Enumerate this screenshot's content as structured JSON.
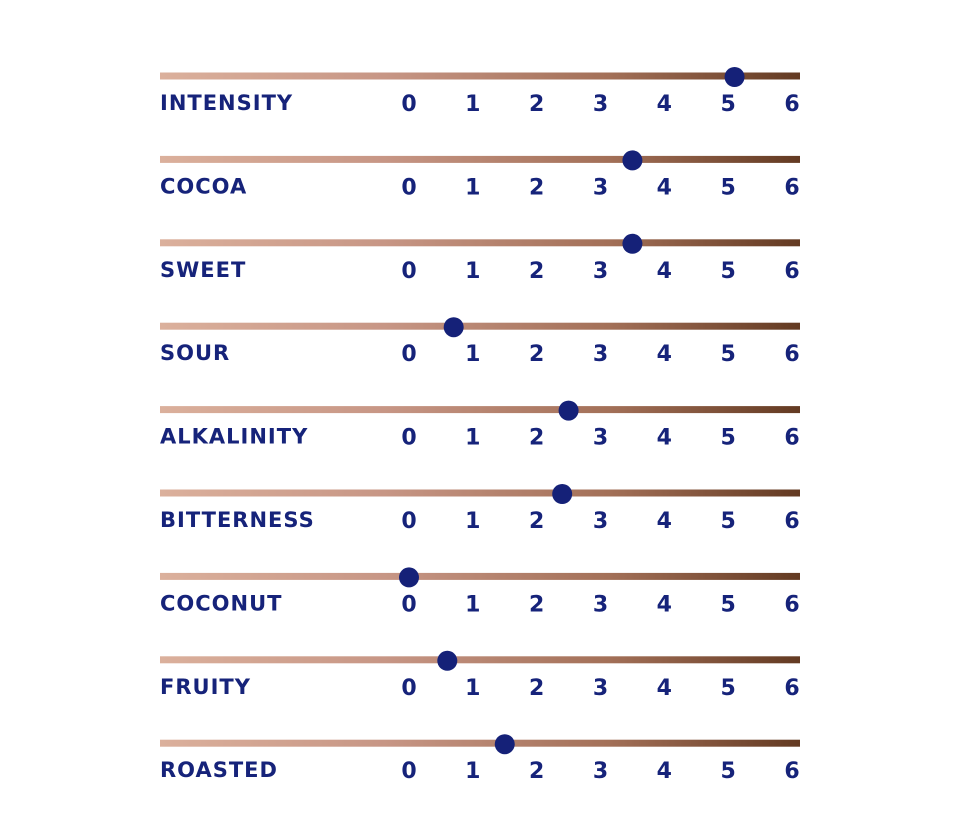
{
  "chart_data": {
    "type": "slider-profile",
    "scale": {
      "min": 0,
      "max": 6,
      "ticks": [
        0,
        1,
        2,
        3,
        4,
        5,
        6
      ]
    },
    "track_gradient": [
      "#dbb09c",
      "#c79685",
      "#a37058",
      "#633a22"
    ],
    "marker_color": "#152178",
    "label_color": "#16237a",
    "rows": [
      {
        "label": "INTENSITY",
        "value": 5.1
      },
      {
        "label": "COCOA",
        "value": 3.5
      },
      {
        "label": "SWEET",
        "value": 3.5
      },
      {
        "label": "SOUR",
        "value": 0.7
      },
      {
        "label": "ALKALINITY",
        "value": 2.5
      },
      {
        "label": "BITTERNESS",
        "value": 2.4
      },
      {
        "label": "COCONUT",
        "value": 0.0
      },
      {
        "label": "FRUITY",
        "value": 0.6
      },
      {
        "label": "ROASTED",
        "value": 1.5
      }
    ]
  }
}
